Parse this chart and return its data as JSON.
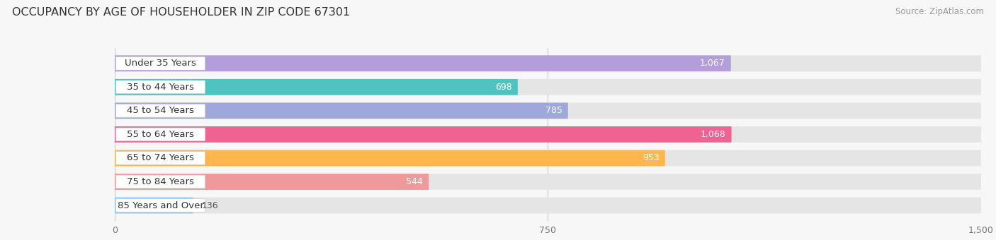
{
  "title": "OCCUPANCY BY AGE OF HOUSEHOLDER IN ZIP CODE 67301",
  "source": "Source: ZipAtlas.com",
  "categories": [
    "Under 35 Years",
    "35 to 44 Years",
    "45 to 54 Years",
    "55 to 64 Years",
    "65 to 74 Years",
    "75 to 84 Years",
    "85 Years and Over"
  ],
  "values": [
    1067,
    698,
    785,
    1068,
    953,
    544,
    136
  ],
  "bar_colors": [
    "#b39ddb",
    "#4fc3c0",
    "#9fa8da",
    "#f06292",
    "#ffb74d",
    "#ef9a9a",
    "#90caf9"
  ],
  "xlim_max": 1500,
  "xticks": [
    0,
    750,
    1500
  ],
  "background_color": "#f7f7f7",
  "bar_bg_color": "#e5e5e5",
  "title_fontsize": 11.5,
  "source_fontsize": 8.5,
  "label_fontsize": 9.5,
  "value_fontsize": 9.0,
  "bar_height": 0.68,
  "bar_gap": 1.0
}
